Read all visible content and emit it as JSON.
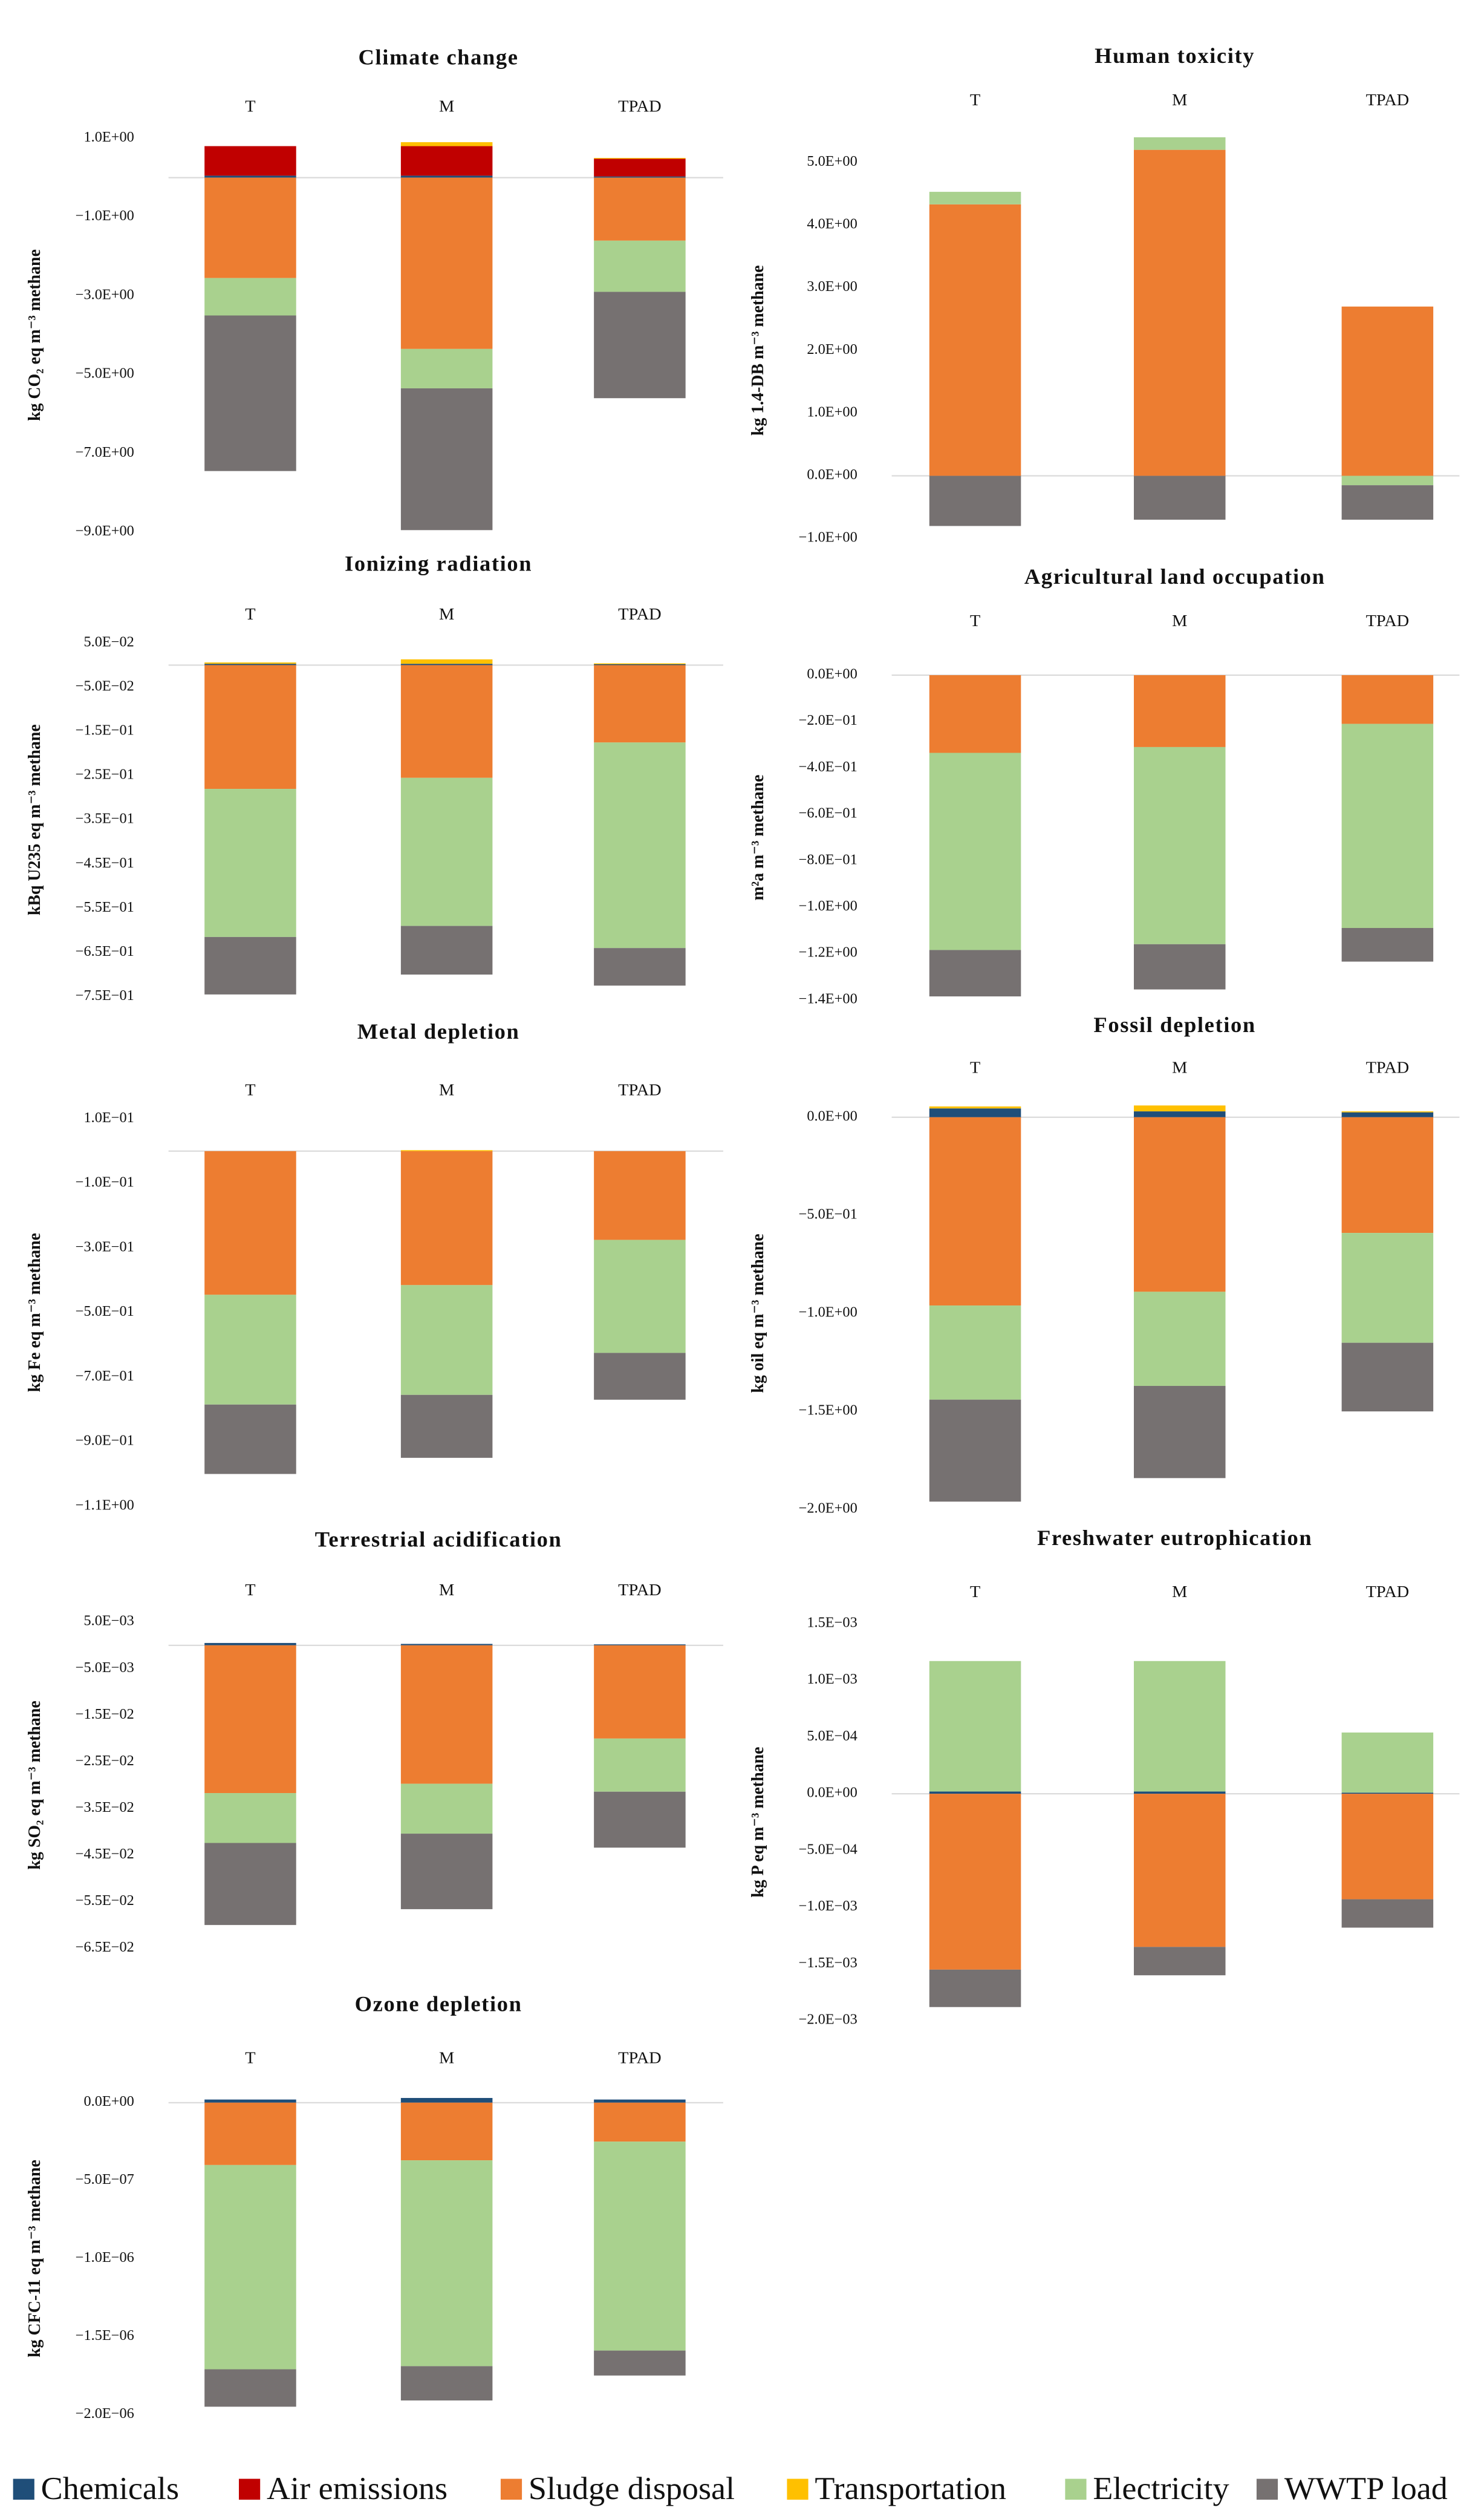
{
  "legend": [
    {
      "name": "Chemicals",
      "color": "#1f4e79"
    },
    {
      "name": "Air emissions",
      "color": "#c00000"
    },
    {
      "name": "Sludge disposal",
      "color": "#ed7d31"
    },
    {
      "name": "Transportation",
      "color": "#ffc000"
    },
    {
      "name": "Electricity",
      "color": "#a9d18e"
    },
    {
      "name": "WWTP load",
      "color": "#767171"
    }
  ],
  "chart_data": [
    {
      "type": "bar",
      "title": "Climate change",
      "y_label": "kg CO₂ eq m⁻³ methane",
      "categories": [
        "T",
        "M",
        "TPAD"
      ],
      "series": [
        {
          "values": [
            0.05,
            0.05,
            0.03
          ]
        },
        {
          "values": [
            0.75,
            0.75,
            0.45
          ]
        },
        {
          "values": [
            -2.55,
            -4.35,
            -1.6
          ]
        },
        {
          "values": [
            0,
            0.1,
            0.02
          ]
        },
        {
          "values": [
            -0.95,
            -1.0,
            -1.3
          ]
        },
        {
          "values": [
            -3.95,
            -3.6,
            -2.7
          ]
        }
      ],
      "ylim": [
        -9,
        1
      ],
      "yticks": [
        {
          "value": 1,
          "label": "1.0E+00"
        },
        {
          "value": -1,
          "label": "−1.0E+00"
        },
        {
          "value": -3,
          "label": "−3.0E+00"
        },
        {
          "value": -5,
          "label": "−5.0E+00"
        },
        {
          "value": -7,
          "label": "−7.0E+00"
        },
        {
          "value": -9,
          "label": "−9.0E+00"
        }
      ]
    },
    {
      "type": "bar",
      "title": "Human toxicity",
      "y_label": "kg 1.4-DB m⁻³ methane",
      "categories": [
        "T",
        "M",
        "TPAD"
      ],
      "series": [
        {
          "values": [
            0,
            0,
            0
          ]
        },
        {
          "values": [
            0,
            0,
            0
          ]
        },
        {
          "values": [
            4.33,
            5.2,
            2.7
          ]
        },
        {
          "values": [
            0,
            0,
            0
          ]
        },
        {
          "values": [
            0.2,
            0.2,
            -0.15
          ]
        },
        {
          "values": [
            -0.8,
            -0.7,
            -0.55
          ]
        }
      ],
      "ylim": [
        -1,
        5
      ],
      "yticks": [
        {
          "value": 5,
          "label": "5.0E+00"
        },
        {
          "value": 4,
          "label": "4.0E+00"
        },
        {
          "value": 3,
          "label": "3.0E+00"
        },
        {
          "value": 2,
          "label": "2.0E+00"
        },
        {
          "value": 1,
          "label": "1.0E+00"
        },
        {
          "value": 0,
          "label": "0.0E+00"
        },
        {
          "value": -1,
          "label": "−1.0E+00"
        }
      ]
    },
    {
      "type": "bar",
      "title": "Ionizing radiation",
      "y_label": "kBq U235 eq m⁻³ methane",
      "categories": [
        "T",
        "M",
        "TPAD"
      ],
      "series": [
        {
          "values": [
            0.003,
            0.003,
            0.002
          ]
        },
        {
          "values": [
            0,
            0,
            0
          ]
        },
        {
          "values": [
            -0.28,
            -0.255,
            -0.175
          ]
        },
        {
          "values": [
            0.003,
            0.01,
            0.002
          ]
        },
        {
          "values": [
            -0.335,
            -0.335,
            -0.465
          ]
        },
        {
          "values": [
            -0.13,
            -0.11,
            -0.085
          ]
        }
      ],
      "ylim": [
        -0.75,
        0.05
      ],
      "yticks": [
        {
          "value": 0.05,
          "label": "5.0E−02"
        },
        {
          "value": -0.05,
          "label": "−5.0E−02"
        },
        {
          "value": -0.15,
          "label": "−1.5E−01"
        },
        {
          "value": -0.25,
          "label": "−2.5E−01"
        },
        {
          "value": -0.35,
          "label": "−3.5E−01"
        },
        {
          "value": -0.45,
          "label": "−4.5E−01"
        },
        {
          "value": -0.55,
          "label": "−5.5E−01"
        },
        {
          "value": -0.65,
          "label": "−6.5E−01"
        },
        {
          "value": -0.75,
          "label": "−7.5E−01"
        }
      ]
    },
    {
      "type": "bar",
      "title": "Agricultural land occupation",
      "y_label": "m²a m⁻³ methane",
      "categories": [
        "T",
        "M",
        "TPAD"
      ],
      "series": [
        {
          "values": [
            0,
            0,
            0
          ]
        },
        {
          "values": [
            0,
            0,
            0
          ]
        },
        {
          "values": [
            -0.335,
            -0.31,
            -0.21
          ]
        },
        {
          "values": [
            0,
            0,
            0
          ]
        },
        {
          "values": [
            -0.85,
            -0.85,
            -0.88
          ]
        },
        {
          "values": [
            -0.2,
            -0.195,
            -0.145
          ]
        }
      ],
      "ylim": [
        -1.4,
        0
      ],
      "yticks": [
        {
          "value": 0,
          "label": "0.0E+00"
        },
        {
          "value": -0.2,
          "label": "−2.0E−01"
        },
        {
          "value": -0.4,
          "label": "−4.0E−01"
        },
        {
          "value": -0.6,
          "label": "−6.0E−01"
        },
        {
          "value": -0.8,
          "label": "−8.0E−01"
        },
        {
          "value": -1.0,
          "label": "−1.0E+00"
        },
        {
          "value": -1.2,
          "label": "−1.2E+00"
        },
        {
          "value": -1.4,
          "label": "−1.4E+00"
        }
      ]
    },
    {
      "type": "bar",
      "title": "Metal depletion",
      "y_label": "kg Fe eq m⁻³ methane",
      "categories": [
        "T",
        "M",
        "TPAD"
      ],
      "series": [
        {
          "values": [
            0,
            0,
            0
          ]
        },
        {
          "values": [
            0,
            0,
            0
          ]
        },
        {
          "values": [
            -0.445,
            -0.415,
            -0.275
          ]
        },
        {
          "values": [
            0,
            0.003,
            0
          ]
        },
        {
          "values": [
            -0.34,
            -0.34,
            -0.35
          ]
        },
        {
          "values": [
            -0.215,
            -0.195,
            -0.145
          ]
        }
      ],
      "ylim": [
        -1.1,
        0.1
      ],
      "yticks": [
        {
          "value": 0.1,
          "label": "1.0E−01"
        },
        {
          "value": -0.1,
          "label": "−1.0E−01"
        },
        {
          "value": -0.3,
          "label": "−3.0E−01"
        },
        {
          "value": -0.5,
          "label": "−5.0E−01"
        },
        {
          "value": -0.7,
          "label": "−7.0E−01"
        },
        {
          "value": -0.9,
          "label": "−9.0E−01"
        },
        {
          "value": -1.1,
          "label": "−1.1E+00"
        }
      ]
    },
    {
      "type": "bar",
      "title": "Fossil depletion",
      "y_label": "kg oil eq m⁻³ methane",
      "categories": [
        "T",
        "M",
        "TPAD"
      ],
      "series": [
        {
          "values": [
            0.045,
            0.03,
            0.025
          ]
        },
        {
          "values": [
            0,
            0,
            0
          ]
        },
        {
          "values": [
            -0.96,
            -0.89,
            -0.59
          ]
        },
        {
          "values": [
            0.01,
            0.03,
            0.005
          ]
        },
        {
          "values": [
            -0.48,
            -0.48,
            -0.56
          ]
        },
        {
          "values": [
            -0.52,
            -0.47,
            -0.35
          ]
        }
      ],
      "ylim": [
        -2,
        0
      ],
      "yticks": [
        {
          "value": 0,
          "label": "0.0E+00"
        },
        {
          "value": -0.5,
          "label": "−5.0E−01"
        },
        {
          "value": -1,
          "label": "−1.0E+00"
        },
        {
          "value": -1.5,
          "label": "−1.5E+00"
        },
        {
          "value": -2,
          "label": "−2.0E+00"
        }
      ]
    },
    {
      "type": "bar",
      "title": "Terrestrial acidification",
      "y_label": "kg SO₂ eq m⁻³ methane",
      "categories": [
        "T",
        "M",
        "TPAD"
      ],
      "series": [
        {
          "values": [
            0.0005,
            0.0003,
            0.0002
          ]
        },
        {
          "values": [
            0,
            0,
            0
          ]
        },
        {
          "values": [
            -0.0317,
            -0.0297,
            -0.02
          ]
        },
        {
          "values": [
            0,
            0,
            0
          ]
        },
        {
          "values": [
            -0.0107,
            -0.0107,
            -0.0114
          ]
        },
        {
          "values": [
            -0.0176,
            -0.0162,
            -0.012
          ]
        }
      ],
      "ylim": [
        -0.065,
        0.005
      ],
      "yticks": [
        {
          "value": 0.005,
          "label": "5.0E−03"
        },
        {
          "value": -0.005,
          "label": "−5.0E−03"
        },
        {
          "value": -0.015,
          "label": "−1.5E−02"
        },
        {
          "value": -0.025,
          "label": "−2.5E−02"
        },
        {
          "value": -0.035,
          "label": "−3.5E−02"
        },
        {
          "value": -0.045,
          "label": "−4.5E−02"
        },
        {
          "value": -0.055,
          "label": "−5.5E−02"
        },
        {
          "value": -0.065,
          "label": "−6.5E−02"
        }
      ]
    },
    {
      "type": "bar",
      "title": "Freshwater eutrophication",
      "y_label": "kg P eq m⁻³ methane",
      "categories": [
        "T",
        "M",
        "TPAD"
      ],
      "series": [
        {
          "values": [
            2e-05,
            2e-05,
            1e-05
          ]
        },
        {
          "values": [
            0,
            0,
            0
          ]
        },
        {
          "values": [
            -0.00155,
            -0.00135,
            -0.00093
          ]
        },
        {
          "values": [
            0,
            0,
            0
          ]
        },
        {
          "values": [
            0.00115,
            0.00115,
            0.00053
          ]
        },
        {
          "values": [
            -0.00033,
            -0.00025,
            -0.00025
          ]
        }
      ],
      "ylim": [
        -0.002,
        0.0015
      ],
      "yticks": [
        {
          "value": 0.0015,
          "label": "1.5E−03"
        },
        {
          "value": 0.001,
          "label": "1.0E−03"
        },
        {
          "value": 0.0005,
          "label": "5.0E−04"
        },
        {
          "value": 0,
          "label": "0.0E+00"
        },
        {
          "value": -0.0005,
          "label": "−5.0E−04"
        },
        {
          "value": -0.001,
          "label": "−1.0E−03"
        },
        {
          "value": -0.0015,
          "label": "−1.5E−03"
        },
        {
          "value": -0.002,
          "label": "−2.0E−03"
        }
      ]
    },
    {
      "type": "bar",
      "title": "Ozone depletion",
      "y_label": "kg CFC-11 eq m⁻³ methane",
      "categories": [
        "T",
        "M",
        "TPAD"
      ],
      "series": [
        {
          "values": [
            2e-08,
            3e-08,
            2e-08
          ]
        },
        {
          "values": [
            0,
            0,
            0
          ]
        },
        {
          "values": [
            -4e-07,
            -3.7e-07,
            -2.5e-07
          ]
        },
        {
          "values": [
            0,
            0,
            0
          ]
        },
        {
          "values": [
            -1.31e-06,
            -1.32e-06,
            -1.34e-06
          ]
        },
        {
          "values": [
            -2.4e-07,
            -2.2e-07,
            -1.6e-07
          ]
        }
      ],
      "ylim": [
        -2e-06,
        0
      ],
      "yticks": [
        {
          "value": 0,
          "label": "0.0E+00"
        },
        {
          "value": -5e-07,
          "label": "−5.0E−07"
        },
        {
          "value": -1e-06,
          "label": "−1.0E−06"
        },
        {
          "value": -1.5e-06,
          "label": "−1.5E−06"
        },
        {
          "value": -2e-06,
          "label": "−2.0E−06"
        }
      ]
    }
  ]
}
